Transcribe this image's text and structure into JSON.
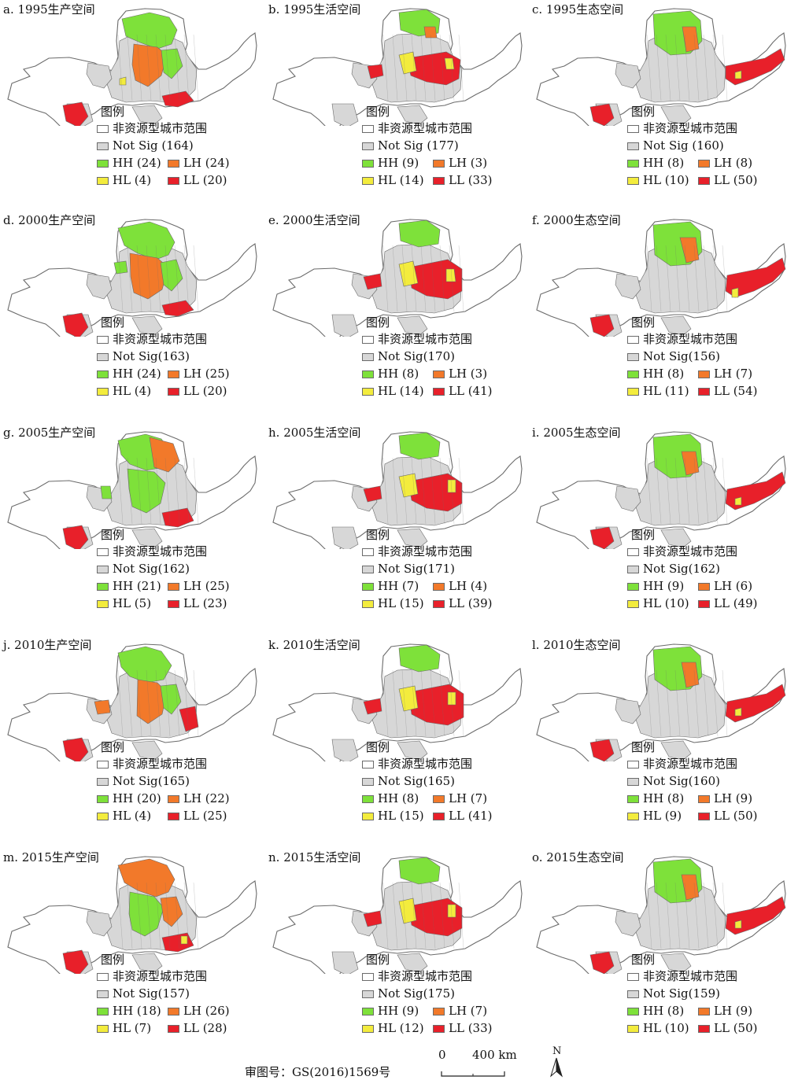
{
  "legend_heading": "图例",
  "legend_nonresource_label": "非资源型城市范围",
  "colors": {
    "HH": "#7ee13a",
    "LH": "#f2792a",
    "HL": "#f3ec3d",
    "LL": "#e8202a",
    "not_sig": "#d7d7d7",
    "non_resource": "#ffffff",
    "border": "#6b6b6b"
  },
  "panels": [
    {
      "title": "a. 1995生产空间",
      "not_sig": "Not Sig (164)",
      "hh": "HH (24)",
      "lh": "LH (24)",
      "hl": "HL (4)",
      "ll": "LL (20)"
    },
    {
      "title": "b. 1995生活空间",
      "not_sig": "Not Sig (177)",
      "hh": "HH (9)",
      "lh": "LH (3)",
      "hl": "HL (14)",
      "ll": "LL (33)"
    },
    {
      "title": "c. 1995生态空间",
      "not_sig": "Not Sig (160)",
      "hh": "HH (8)",
      "lh": "LH (8)",
      "hl": "HL (10)",
      "ll": "LL (50)"
    },
    {
      "title": "d. 2000生产空间",
      "not_sig": "Not Sig(163)",
      "hh": "HH (24)",
      "lh": "LH (25)",
      "hl": "HL (4)",
      "ll": "LL (20)"
    },
    {
      "title": "e. 2000生活空间",
      "not_sig": "Not Sig(170)",
      "hh": "HH (8)",
      "lh": "LH (3)",
      "hl": "HL (14)",
      "ll": "LL (41)"
    },
    {
      "title": "f. 2000生态空间",
      "not_sig": "Not Sig(156)",
      "hh": "HH (8)",
      "lh": "LH (7)",
      "hl": "HL (11)",
      "ll": "LL (54)"
    },
    {
      "title": "g. 2005生产空间",
      "not_sig": "Not Sig(162)",
      "hh": "HH (21)",
      "lh": "LH (25)",
      "hl": "HL (5)",
      "ll": "LL (23)"
    },
    {
      "title": "h. 2005生活空间",
      "not_sig": "Not Sig(171)",
      "hh": "HH (7)",
      "lh": "LH (4)",
      "hl": "HL (15)",
      "ll": "LL (39)"
    },
    {
      "title": "i. 2005生态空间",
      "not_sig": "Not Sig(162)",
      "hh": "HH (9)",
      "lh": "LH (6)",
      "hl": "HL (10)",
      "ll": "LL (49)"
    },
    {
      "title": "j. 2010生产空间",
      "not_sig": "Not Sig(165)",
      "hh": "HH (20)",
      "lh": "LH (22)",
      "hl": "HL (4)",
      "ll": "LL (25)"
    },
    {
      "title": "k. 2010生活空间",
      "not_sig": "Not Sig(165)",
      "hh": "HH (8)",
      "lh": "LH (7)",
      "hl": "HL (15)",
      "ll": "LL (41)"
    },
    {
      "title": "l. 2010生态空间",
      "not_sig": "Not Sig(160)",
      "hh": "HH (8)",
      "lh": "LH (9)",
      "hl": "HL (9)",
      "ll": "LL (50)"
    },
    {
      "title": "m. 2015生产空间",
      "not_sig": "Not Sig(157)",
      "hh": "HH (18)",
      "lh": "LH (26)",
      "hl": "HL (7)",
      "ll": "LL (28)"
    },
    {
      "title": "n. 2015生活空间",
      "not_sig": "Not Sig(175)",
      "hh": "HH (9)",
      "lh": "LH (7)",
      "hl": "HL (12)",
      "ll": "LL (33)"
    },
    {
      "title": "o. 2015生态空间",
      "not_sig": "Not Sig(159)",
      "hh": "HH (8)",
      "lh": "LH (9)",
      "hl": "HL (10)",
      "ll": "LL (50)"
    }
  ],
  "approval_number": "审图号：GS(2016)1569号",
  "scale_zero": "0",
  "scale_max": "400 km",
  "north_label": "N"
}
